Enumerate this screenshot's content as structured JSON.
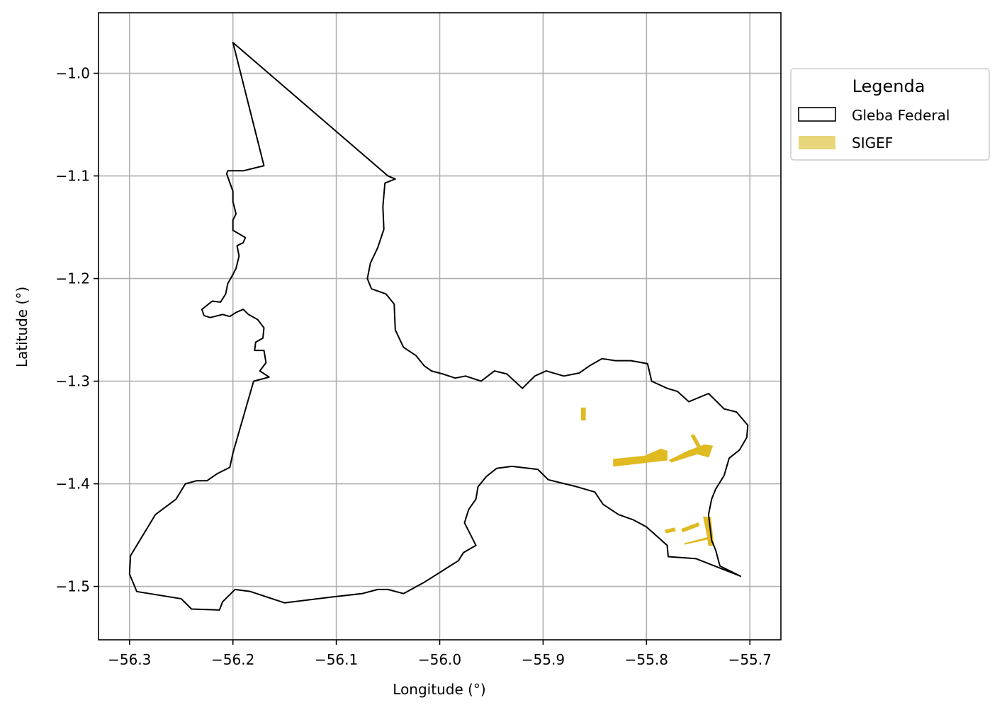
{
  "chart_data": {
    "type": "map",
    "xlabel": "Longitude (°)",
    "ylabel": "Latitude (°)",
    "xlim": [
      -56.33,
      -55.67
    ],
    "ylim": [
      -1.552,
      -0.941
    ],
    "grid": true,
    "x_ticks": [
      -56.3,
      -56.2,
      -56.1,
      -56.0,
      -55.9,
      -55.8,
      -55.7
    ],
    "x_tick_labels": [
      "−56.3",
      "−56.2",
      "−56.1",
      "−56.0",
      "−55.9",
      "−55.8",
      "−55.7"
    ],
    "y_ticks": [
      -1.0,
      -1.1,
      -1.2,
      -1.3,
      -1.4,
      -1.5
    ],
    "y_tick_labels": [
      "−1.0",
      "−1.1",
      "−1.2",
      "−1.3",
      "−1.4",
      "−1.5"
    ],
    "legend": {
      "title": "Legenda",
      "position": "outside-right-top",
      "entries": [
        {
          "label": "Gleba Federal",
          "style": "outline",
          "color": "#000000"
        },
        {
          "label": "SIGEF",
          "style": "fill",
          "color": "#e8d77a"
        }
      ]
    },
    "series": [
      {
        "name": "Gleba Federal",
        "style": "outline",
        "color": "#000000",
        "coords": [
          [
            -56.2,
            -0.97
          ],
          [
            -56.05,
            -1.1
          ],
          [
            -56.043,
            -1.103
          ],
          [
            -56.053,
            -1.107
          ],
          [
            -56.055,
            -1.13
          ],
          [
            -56.054,
            -1.152
          ],
          [
            -56.06,
            -1.17
          ],
          [
            -56.067,
            -1.185
          ],
          [
            -56.07,
            -1.2
          ],
          [
            -56.066,
            -1.21
          ],
          [
            -56.052,
            -1.215
          ],
          [
            -56.044,
            -1.225
          ],
          [
            -56.043,
            -1.25
          ],
          [
            -56.035,
            -1.267
          ],
          [
            -56.023,
            -1.275
          ],
          [
            -56.015,
            -1.285
          ],
          [
            -56.008,
            -1.29
          ],
          [
            -55.997,
            -1.293
          ],
          [
            -55.985,
            -1.297
          ],
          [
            -55.975,
            -1.295
          ],
          [
            -55.96,
            -1.3
          ],
          [
            -55.947,
            -1.29
          ],
          [
            -55.935,
            -1.293
          ],
          [
            -55.92,
            -1.307
          ],
          [
            -55.908,
            -1.295
          ],
          [
            -55.897,
            -1.29
          ],
          [
            -55.88,
            -1.295
          ],
          [
            -55.865,
            -1.292
          ],
          [
            -55.855,
            -1.285
          ],
          [
            -55.843,
            -1.278
          ],
          [
            -55.83,
            -1.28
          ],
          [
            -55.815,
            -1.28
          ],
          [
            -55.799,
            -1.283
          ],
          [
            -55.795,
            -1.3
          ],
          [
            -55.78,
            -1.307
          ],
          [
            -55.77,
            -1.31
          ],
          [
            -55.759,
            -1.32
          ],
          [
            -55.74,
            -1.312
          ],
          [
            -55.725,
            -1.327
          ],
          [
            -55.713,
            -1.33
          ],
          [
            -55.702,
            -1.343
          ],
          [
            -55.703,
            -1.355
          ],
          [
            -55.71,
            -1.367
          ],
          [
            -55.72,
            -1.375
          ],
          [
            -55.725,
            -1.392
          ],
          [
            -55.733,
            -1.405
          ],
          [
            -55.737,
            -1.415
          ],
          [
            -55.74,
            -1.43
          ],
          [
            -55.737,
            -1.455
          ],
          [
            -55.733,
            -1.465
          ],
          [
            -55.729,
            -1.48
          ],
          [
            -55.709,
            -1.49
          ],
          [
            -55.752,
            -1.473
          ],
          [
            -55.779,
            -1.471
          ],
          [
            -55.78,
            -1.46
          ],
          [
            -55.8,
            -1.442
          ],
          [
            -55.813,
            -1.435
          ],
          [
            -55.827,
            -1.43
          ],
          [
            -55.842,
            -1.42
          ],
          [
            -55.85,
            -1.408
          ],
          [
            -55.867,
            -1.403
          ],
          [
            -55.895,
            -1.396
          ],
          [
            -55.905,
            -1.386
          ],
          [
            -55.93,
            -1.383
          ],
          [
            -55.945,
            -1.385
          ],
          [
            -55.955,
            -1.393
          ],
          [
            -55.963,
            -1.403
          ],
          [
            -55.965,
            -1.415
          ],
          [
            -55.972,
            -1.425
          ],
          [
            -55.976,
            -1.438
          ],
          [
            -55.97,
            -1.45
          ],
          [
            -55.965,
            -1.46
          ],
          [
            -55.977,
            -1.467
          ],
          [
            -55.982,
            -1.475
          ],
          [
            -55.99,
            -1.48
          ],
          [
            -56.015,
            -1.496
          ],
          [
            -56.035,
            -1.507
          ],
          [
            -56.05,
            -1.503
          ],
          [
            -56.06,
            -1.503
          ],
          [
            -56.075,
            -1.507
          ],
          [
            -56.102,
            -1.51
          ],
          [
            -56.15,
            -1.516
          ],
          [
            -56.183,
            -1.505
          ],
          [
            -56.198,
            -1.503
          ],
          [
            -56.21,
            -1.515
          ],
          [
            -56.213,
            -1.523
          ],
          [
            -56.24,
            -1.522
          ],
          [
            -56.25,
            -1.512
          ],
          [
            -56.293,
            -1.505
          ],
          [
            -56.3,
            -1.488
          ],
          [
            -56.299,
            -1.47
          ],
          [
            -56.29,
            -1.455
          ],
          [
            -56.275,
            -1.43
          ],
          [
            -56.255,
            -1.415
          ],
          [
            -56.246,
            -1.4
          ],
          [
            -56.235,
            -1.397
          ],
          [
            -56.225,
            -1.397
          ],
          [
            -56.215,
            -1.39
          ],
          [
            -56.203,
            -1.384
          ],
          [
            -56.2,
            -1.37
          ],
          [
            -56.18,
            -1.3
          ],
          [
            -56.165,
            -1.296
          ],
          [
            -56.174,
            -1.29
          ],
          [
            -56.168,
            -1.282
          ],
          [
            -56.17,
            -1.27
          ],
          [
            -56.179,
            -1.27
          ],
          [
            -56.178,
            -1.262
          ],
          [
            -56.171,
            -1.258
          ],
          [
            -56.17,
            -1.248
          ],
          [
            -56.176,
            -1.24
          ],
          [
            -56.185,
            -1.235
          ],
          [
            -56.19,
            -1.23
          ],
          [
            -56.197,
            -1.233
          ],
          [
            -56.203,
            -1.237
          ],
          [
            -56.21,
            -1.235
          ],
          [
            -56.222,
            -1.238
          ],
          [
            -56.228,
            -1.236
          ],
          [
            -56.23,
            -1.23
          ],
          [
            -56.22,
            -1.222
          ],
          [
            -56.212,
            -1.223
          ],
          [
            -56.207,
            -1.215
          ],
          [
            -56.205,
            -1.205
          ],
          [
            -56.2,
            -1.196
          ],
          [
            -56.197,
            -1.19
          ],
          [
            -56.194,
            -1.178
          ],
          [
            -56.196,
            -1.168
          ],
          [
            -56.19,
            -1.165
          ],
          [
            -56.188,
            -1.16
          ],
          [
            -56.2,
            -1.153
          ],
          [
            -56.2,
            -1.143
          ],
          [
            -56.197,
            -1.137
          ],
          [
            -56.2,
            -1.125
          ],
          [
            -56.2,
            -1.115
          ],
          [
            -56.206,
            -1.098
          ],
          [
            -56.205,
            -1.095
          ],
          [
            -56.19,
            -1.095
          ],
          [
            -56.17,
            -1.09
          ],
          [
            -56.2,
            -0.97
          ]
        ]
      },
      {
        "name": "SIGEF",
        "style": "fill",
        "color": "#dfba20",
        "polygons": [
          [
            [
              -55.863,
              -1.326
            ],
            [
              -55.859,
              -1.326
            ],
            [
              -55.859,
              -1.338
            ],
            [
              -55.863,
              -1.338
            ]
          ],
          [
            [
              -55.832,
              -1.376
            ],
            [
              -55.802,
              -1.373
            ],
            [
              -55.786,
              -1.366
            ],
            [
              -55.78,
              -1.368
            ],
            [
              -55.78,
              -1.377
            ],
            [
              -55.832,
              -1.383
            ]
          ],
          [
            [
              -55.778,
              -1.377
            ],
            [
              -55.76,
              -1.368
            ],
            [
              -55.744,
              -1.362
            ],
            [
              -55.736,
              -1.363
            ],
            [
              -55.74,
              -1.374
            ],
            [
              -55.751,
              -1.371
            ],
            [
              -55.776,
              -1.379
            ]
          ],
          [
            [
              -55.757,
              -1.353
            ],
            [
              -55.754,
              -1.352
            ],
            [
              -55.748,
              -1.363
            ],
            [
              -55.751,
              -1.364
            ]
          ],
          [
            [
              -55.766,
              -1.444
            ],
            [
              -55.75,
              -1.438
            ],
            [
              -55.749,
              -1.441
            ],
            [
              -55.765,
              -1.447
            ]
          ],
          [
            [
              -55.782,
              -1.445
            ],
            [
              -55.773,
              -1.443
            ],
            [
              -55.772,
              -1.446
            ],
            [
              -55.781,
              -1.448
            ]
          ],
          [
            [
              -55.745,
              -1.432
            ],
            [
              -55.738,
              -1.433
            ],
            [
              -55.735,
              -1.46
            ],
            [
              -55.74,
              -1.46
            ],
            [
              -55.741,
              -1.452
            ]
          ],
          [
            [
              -55.763,
              -1.458
            ],
            [
              -55.74,
              -1.452
            ],
            [
              -55.741,
              -1.454
            ],
            [
              -55.763,
              -1.459
            ]
          ]
        ]
      }
    ]
  }
}
